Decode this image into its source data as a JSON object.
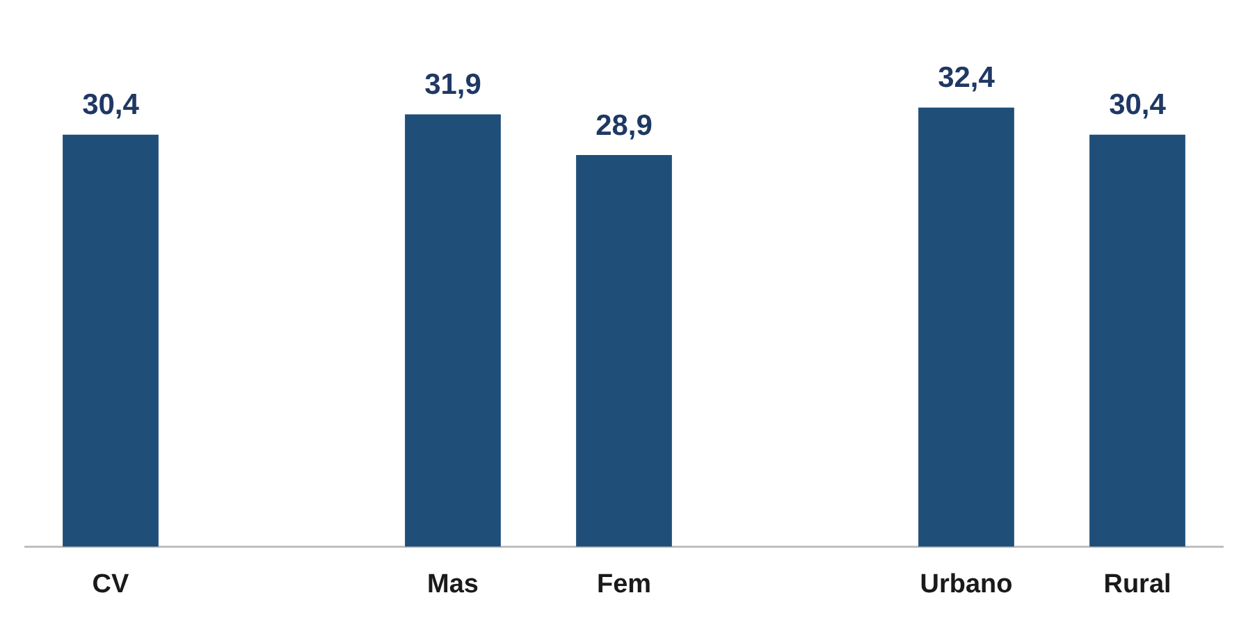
{
  "chart_data": {
    "type": "bar",
    "categories": [
      "CV",
      null,
      "Mas",
      "Fem",
      null,
      "Urbano",
      "Rural"
    ],
    "values": [
      30.4,
      null,
      31.9,
      28.9,
      null,
      32.4,
      30.4
    ],
    "value_labels": [
      "30,4",
      null,
      "31,9",
      "28,9",
      null,
      "32,4",
      "30,4"
    ],
    "color": "#1f4e79",
    "grid": false,
    "legend": false,
    "tick_labels": "x"
  }
}
